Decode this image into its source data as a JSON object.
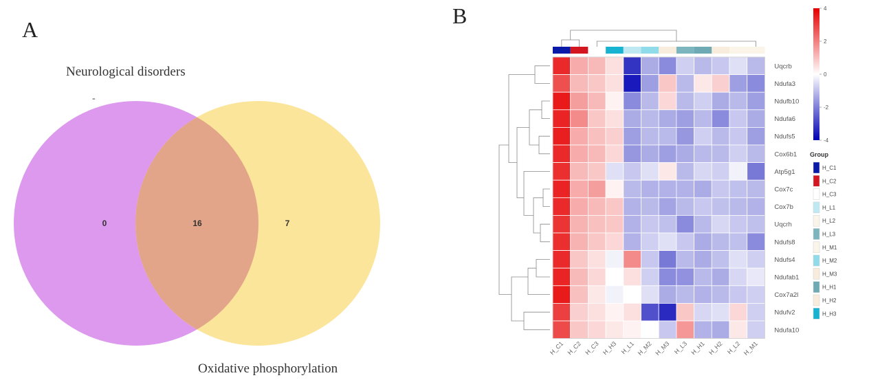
{
  "chart_data": [
    {
      "type": "venn",
      "panel_label": "A",
      "sets": [
        {
          "name": "Neurological disorders",
          "color": "#dd99ee",
          "marker": "-"
        },
        {
          "name": "Oxidative phosphorylation",
          "color": "#fbe59a"
        }
      ],
      "counts": {
        "only_first": "0",
        "intersection": "16",
        "only_second": "7"
      },
      "overlap_color": "#e3a589"
    },
    {
      "type": "heatmap",
      "panel_label": "B",
      "rows": [
        "Uqcrb",
        "Ndufa3",
        "Ndufb10",
        "Ndufa6",
        "Ndufs5",
        "Cox6b1",
        "Atp5g1",
        "Cox7c",
        "Cox7b",
        "Uqcrh",
        "Ndufs8",
        "Ndufs4",
        "Ndufab1",
        "Cox7a2l",
        "Ndufv2",
        "Ndufa10"
      ],
      "columns": [
        "H_C1",
        "H_C2",
        "H_C3",
        "H_H3",
        "H_L1",
        "H_M2",
        "H_M3",
        "H_L3",
        "H_H1",
        "H_H2",
        "H_L2",
        "H_M1"
      ],
      "column_groups": [
        "H_C1",
        "H_C2",
        "H_C3",
        "H_H3",
        "H_L1",
        "H_M2",
        "H_M3",
        "H_L3",
        "H_H1",
        "H_H2",
        "H_L2",
        "H_M1"
      ],
      "values": [
        [
          3.2,
          1.0,
          0.8,
          0.3,
          -3.0,
          -1.0,
          -1.5,
          -0.5,
          -0.8,
          -0.6,
          -0.3,
          -0.8
        ],
        [
          2.5,
          0.8,
          0.6,
          0.3,
          -3.5,
          -1.2,
          0.6,
          -0.8,
          0.2,
          0.5,
          -1.2,
          -1.5
        ],
        [
          3.5,
          1.2,
          0.8,
          0.1,
          -1.5,
          -0.8,
          0.4,
          -0.8,
          -0.5,
          -1.0,
          -0.8,
          -1.2
        ],
        [
          3.3,
          1.5,
          0.6,
          0.3,
          -1.0,
          -0.8,
          -1.0,
          -1.2,
          -0.8,
          -1.5,
          -0.6,
          -1.0
        ],
        [
          3.4,
          1.0,
          0.7,
          0.5,
          -1.2,
          -0.8,
          -0.8,
          -1.3,
          -0.5,
          -0.8,
          -0.6,
          -1.2
        ],
        [
          3.2,
          1.0,
          0.8,
          0.4,
          -1.3,
          -1.0,
          -1.2,
          -1.0,
          -0.8,
          -0.8,
          -0.5,
          -0.8
        ],
        [
          3.1,
          0.8,
          0.6,
          -0.3,
          -0.6,
          -0.3,
          0.2,
          -0.8,
          -0.4,
          -0.5,
          -0.1,
          -1.8
        ],
        [
          3.3,
          1.0,
          1.2,
          0.1,
          -0.8,
          -0.9,
          -0.9,
          -0.9,
          -1.0,
          -0.6,
          -0.7,
          -0.8
        ],
        [
          3.2,
          1.0,
          0.8,
          0.6,
          -0.9,
          -0.8,
          -1.1,
          -0.8,
          -0.6,
          -0.7,
          -0.8,
          -0.9
        ],
        [
          3.0,
          0.9,
          0.7,
          0.6,
          -0.9,
          -0.6,
          -0.7,
          -1.5,
          -0.8,
          -0.4,
          -0.6,
          -0.7
        ],
        [
          3.1,
          0.9,
          0.6,
          0.4,
          -0.9,
          -0.5,
          -0.3,
          -0.6,
          -1.0,
          -0.8,
          -0.7,
          -1.5
        ],
        [
          3.2,
          0.6,
          0.3,
          -0.1,
          1.5,
          -0.6,
          -1.8,
          -0.8,
          -1.0,
          -0.7,
          -0.3,
          -0.5
        ],
        [
          3.3,
          0.8,
          0.4,
          0.0,
          0.3,
          -0.5,
          -1.5,
          -1.4,
          -0.8,
          -1.0,
          -0.4,
          -0.2
        ],
        [
          3.5,
          0.7,
          0.2,
          -0.1,
          0.0,
          -0.3,
          -1.0,
          -0.8,
          -0.9,
          -0.8,
          -0.6,
          -0.5
        ],
        [
          2.8,
          0.5,
          0.3,
          0.1,
          0.3,
          -2.5,
          -3.2,
          0.6,
          -0.4,
          -0.3,
          0.4,
          -0.5
        ],
        [
          2.6,
          0.6,
          0.4,
          0.2,
          0.1,
          0.0,
          -0.6,
          1.3,
          -0.9,
          -1.0,
          0.2,
          -0.5
        ]
      ],
      "color_scale": {
        "min": -4,
        "max": 4,
        "ticks": [
          "4",
          "2",
          "0",
          "-2",
          "-4"
        ],
        "low": "#0000b4",
        "mid": "#ffffff",
        "high": "#e60000"
      },
      "legend": {
        "title": "Group",
        "entries": [
          {
            "label": "H_C1",
            "color": "#0a1aa8"
          },
          {
            "label": "H_C2",
            "color": "#d41620"
          },
          {
            "label": "H_C3",
            "color": "#ffffff"
          },
          {
            "label": "H_L1",
            "color": "#bfe9f2"
          },
          {
            "label": "H_L2",
            "color": "#fbf4e8"
          },
          {
            "label": "H_L3",
            "color": "#7db5be"
          },
          {
            "label": "H_M1",
            "color": "#fbf4e8"
          },
          {
            "label": "H_M2",
            "color": "#8fdbea"
          },
          {
            "label": "H_M3",
            "color": "#f8ecdc"
          },
          {
            "label": "H_H1",
            "color": "#6fa9b3"
          },
          {
            "label": "H_H2",
            "color": "#f8ecdc"
          },
          {
            "label": "H_H3",
            "color": "#19b3d2"
          }
        ]
      }
    }
  ]
}
